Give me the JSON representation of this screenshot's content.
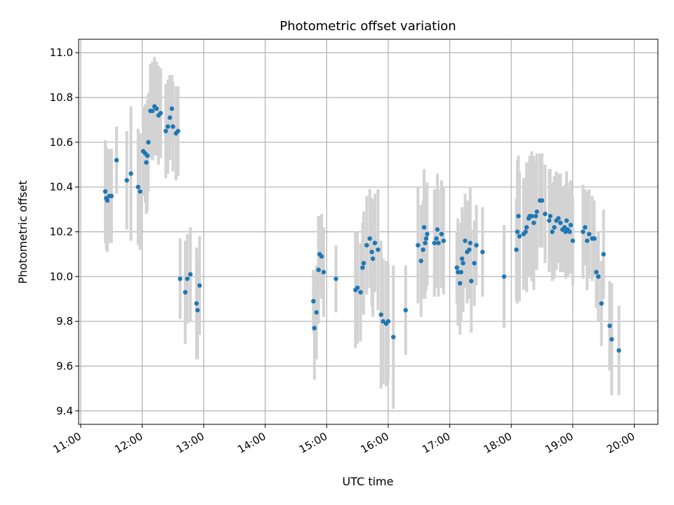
{
  "chart_data": {
    "type": "scatter",
    "title": "Photometric offset variation",
    "xlabel": "UTC time",
    "ylabel": "Photometric offset",
    "xlim": [
      "10:58",
      "20:23"
    ],
    "ylim": [
      9.34,
      11.06
    ],
    "x_ticks": [
      "11:00",
      "12:00",
      "13:00",
      "14:00",
      "15:00",
      "16:00",
      "17:00",
      "18:00",
      "19:00",
      "20:00"
    ],
    "y_ticks": [
      "9.4",
      "9.6",
      "9.8",
      "10.0",
      "10.2",
      "10.4",
      "10.6",
      "10.8",
      "11.0"
    ],
    "grid": true,
    "colors": {
      "point": "#1f77b4",
      "errorbar": "#d3d3d3",
      "grid": "#b0b0b0"
    },
    "series": [
      {
        "marker": "point-with-errorbar",
        "points": [
          {
            "t": "11:24",
            "y": 10.38,
            "err": 0.23
          },
          {
            "t": "11:25",
            "y": 10.35,
            "err": 0.23
          },
          {
            "t": "11:26",
            "y": 10.34,
            "err": 0.23
          },
          {
            "t": "11:28",
            "y": 10.36,
            "err": 0.21
          },
          {
            "t": "11:30",
            "y": 10.36,
            "err": 0.21
          },
          {
            "t": "11:35",
            "y": 10.52,
            "err": 0.15
          },
          {
            "t": "11:45",
            "y": 10.43,
            "err": 0.22
          },
          {
            "t": "11:49",
            "y": 10.46,
            "err": 0.3
          },
          {
            "t": "11:56",
            "y": 10.4,
            "err": 0.26
          },
          {
            "t": "11:58",
            "y": 10.38,
            "err": 0.26
          },
          {
            "t": "12:01",
            "y": 10.56,
            "err": 0.2
          },
          {
            "t": "12:03",
            "y": 10.55,
            "err": 0.22
          },
          {
            "t": "12:04",
            "y": 10.51,
            "err": 0.23
          },
          {
            "t": "12:05",
            "y": 10.54,
            "err": 0.25
          },
          {
            "t": "12:06",
            "y": 10.6,
            "err": 0.22
          },
          {
            "t": "12:08",
            "y": 10.74,
            "err": 0.21
          },
          {
            "t": "12:10",
            "y": 10.74,
            "err": 0.22
          },
          {
            "t": "12:12",
            "y": 10.76,
            "err": 0.22
          },
          {
            "t": "12:14",
            "y": 10.75,
            "err": 0.21
          },
          {
            "t": "12:16",
            "y": 10.72,
            "err": 0.22
          },
          {
            "t": "12:18",
            "y": 10.73,
            "err": 0.2
          },
          {
            "t": "12:23",
            "y": 10.65,
            "err": 0.21
          },
          {
            "t": "12:25",
            "y": 10.67,
            "err": 0.21
          },
          {
            "t": "12:27",
            "y": 10.71,
            "err": 0.19
          },
          {
            "t": "12:29",
            "y": 10.75,
            "err": 0.15
          },
          {
            "t": "12:30",
            "y": 10.67,
            "err": 0.2
          },
          {
            "t": "12:33",
            "y": 10.64,
            "err": 0.21
          },
          {
            "t": "12:35",
            "y": 10.65,
            "err": 0.2
          },
          {
            "t": "12:37",
            "y": 9.99,
            "err": 0.18
          },
          {
            "t": "12:42",
            "y": 9.93,
            "err": 0.23
          },
          {
            "t": "12:44",
            "y": 9.99,
            "err": 0.2
          },
          {
            "t": "12:47",
            "y": 10.01,
            "err": 0.21
          },
          {
            "t": "12:53",
            "y": 9.88,
            "err": 0.25
          },
          {
            "t": "12:54",
            "y": 9.85,
            "err": 0.22
          },
          {
            "t": "12:56",
            "y": 9.96,
            "err": 0.22
          },
          {
            "t": "14:47",
            "y": 9.89,
            "err": 0.14
          },
          {
            "t": "14:48",
            "y": 9.77,
            "err": 0.23
          },
          {
            "t": "14:50",
            "y": 9.84,
            "err": 0.21
          },
          {
            "t": "14:52",
            "y": 10.03,
            "err": 0.24
          },
          {
            "t": "14:53",
            "y": 10.1,
            "err": 0.17
          },
          {
            "t": "14:55",
            "y": 10.09,
            "err": 0.19
          },
          {
            "t": "14:57",
            "y": 10.02,
            "err": 0.2
          },
          {
            "t": "15:09",
            "y": 9.99,
            "err": 0.15
          },
          {
            "t": "15:28",
            "y": 9.94,
            "err": 0.26
          },
          {
            "t": "15:30",
            "y": 9.95,
            "err": 0.25
          },
          {
            "t": "15:33",
            "y": 9.93,
            "err": 0.22
          },
          {
            "t": "15:35",
            "y": 10.04,
            "err": 0.2
          },
          {
            "t": "15:36",
            "y": 10.06,
            "err": 0.23
          },
          {
            "t": "15:39",
            "y": 10.14,
            "err": 0.22
          },
          {
            "t": "15:42",
            "y": 10.17,
            "err": 0.22
          },
          {
            "t": "15:44",
            "y": 10.11,
            "err": 0.24
          },
          {
            "t": "15:45",
            "y": 10.08,
            "err": 0.26
          },
          {
            "t": "15:47",
            "y": 10.15,
            "err": 0.22
          },
          {
            "t": "15:50",
            "y": 10.12,
            "err": 0.27
          },
          {
            "t": "15:53",
            "y": 9.83,
            "err": 0.33
          },
          {
            "t": "15:55",
            "y": 9.8,
            "err": 0.28
          },
          {
            "t": "15:58",
            "y": 9.79,
            "err": 0.28
          },
          {
            "t": "16:00",
            "y": 9.8,
            "err": 0.26
          },
          {
            "t": "16:05",
            "y": 9.73,
            "err": 0.32
          },
          {
            "t": "16:17",
            "y": 9.85,
            "err": 0.2
          },
          {
            "t": "16:29",
            "y": 10.14,
            "err": 0.26
          },
          {
            "t": "16:32",
            "y": 10.07,
            "err": 0.25
          },
          {
            "t": "16:34",
            "y": 10.12,
            "err": 0.22
          },
          {
            "t": "16:35",
            "y": 10.22,
            "err": 0.26
          },
          {
            "t": "16:36",
            "y": 10.15,
            "err": 0.25
          },
          {
            "t": "16:37",
            "y": 10.17,
            "err": 0.23
          },
          {
            "t": "16:38",
            "y": 10.19,
            "err": 0.23
          },
          {
            "t": "16:45",
            "y": 10.15,
            "err": 0.24
          },
          {
            "t": "16:47",
            "y": 10.17,
            "err": 0.22
          },
          {
            "t": "16:48",
            "y": 10.21,
            "err": 0.25
          },
          {
            "t": "16:49",
            "y": 10.15,
            "err": 0.24
          },
          {
            "t": "16:52",
            "y": 10.19,
            "err": 0.24
          },
          {
            "t": "16:54",
            "y": 10.16,
            "err": 0.24
          },
          {
            "t": "17:07",
            "y": 10.04,
            "err": 0.16
          },
          {
            "t": "17:08",
            "y": 10.02,
            "err": 0.24
          },
          {
            "t": "17:10",
            "y": 9.97,
            "err": 0.23
          },
          {
            "t": "17:11",
            "y": 10.02,
            "err": 0.22
          },
          {
            "t": "17:12",
            "y": 10.08,
            "err": 0.23
          },
          {
            "t": "17:13",
            "y": 10.06,
            "err": 0.22
          },
          {
            "t": "17:15",
            "y": 10.16,
            "err": 0.21
          },
          {
            "t": "17:17",
            "y": 10.11,
            "err": 0.23
          },
          {
            "t": "17:19",
            "y": 10.12,
            "err": 0.22
          },
          {
            "t": "17:20",
            "y": 10.15,
            "err": 0.25
          },
          {
            "t": "17:21",
            "y": 9.98,
            "err": 0.23
          },
          {
            "t": "17:24",
            "y": 10.06,
            "err": 0.19
          },
          {
            "t": "17:26",
            "y": 10.14,
            "err": 0.18
          },
          {
            "t": "17:32",
            "y": 10.11,
            "err": 0.2
          },
          {
            "t": "17:53",
            "y": 10.0,
            "err": 0.23
          },
          {
            "t": "18:05",
            "y": 10.12,
            "err": 0.23
          },
          {
            "t": "18:06",
            "y": 10.2,
            "err": 0.32
          },
          {
            "t": "18:07",
            "y": 10.27,
            "err": 0.27
          },
          {
            "t": "18:08",
            "y": 10.18,
            "err": 0.29
          },
          {
            "t": "18:12",
            "y": 10.19,
            "err": 0.25
          },
          {
            "t": "18:14",
            "y": 10.2,
            "err": 0.24
          },
          {
            "t": "18:15",
            "y": 10.22,
            "err": 0.29
          },
          {
            "t": "18:17",
            "y": 10.26,
            "err": 0.25
          },
          {
            "t": "18:18",
            "y": 10.27,
            "err": 0.27
          },
          {
            "t": "18:20",
            "y": 10.27,
            "err": 0.29
          },
          {
            "t": "18:22",
            "y": 10.24,
            "err": 0.3
          },
          {
            "t": "18:24",
            "y": 10.27,
            "err": 0.24
          },
          {
            "t": "18:25",
            "y": 10.29,
            "err": 0.26
          },
          {
            "t": "18:28",
            "y": 10.34,
            "err": 0.21
          },
          {
            "t": "18:30",
            "y": 10.34,
            "err": 0.21
          },
          {
            "t": "18:33",
            "y": 10.28,
            "err": 0.22
          },
          {
            "t": "18:37",
            "y": 10.25,
            "err": 0.23
          },
          {
            "t": "18:38",
            "y": 10.27,
            "err": 0.21
          },
          {
            "t": "18:40",
            "y": 10.2,
            "err": 0.22
          },
          {
            "t": "18:42",
            "y": 10.22,
            "err": 0.23
          },
          {
            "t": "18:44",
            "y": 10.25,
            "err": 0.22
          },
          {
            "t": "18:46",
            "y": 10.26,
            "err": 0.2
          },
          {
            "t": "18:48",
            "y": 10.24,
            "err": 0.22
          },
          {
            "t": "18:50",
            "y": 10.21,
            "err": 0.19
          },
          {
            "t": "18:52",
            "y": 10.22,
            "err": 0.19
          },
          {
            "t": "18:53",
            "y": 10.2,
            "err": 0.21
          },
          {
            "t": "18:54",
            "y": 10.25,
            "err": 0.22
          },
          {
            "t": "18:55",
            "y": 10.21,
            "err": 0.21
          },
          {
            "t": "18:57",
            "y": 10.2,
            "err": 0.19
          },
          {
            "t": "18:58",
            "y": 10.23,
            "err": 0.2
          },
          {
            "t": "19:00",
            "y": 10.16,
            "err": 0.2
          },
          {
            "t": "19:10",
            "y": 10.2,
            "err": 0.21
          },
          {
            "t": "19:12",
            "y": 10.22,
            "err": 0.17
          },
          {
            "t": "19:14",
            "y": 10.16,
            "err": 0.22
          },
          {
            "t": "19:16",
            "y": 10.19,
            "err": 0.2
          },
          {
            "t": "19:19",
            "y": 10.17,
            "err": 0.19
          },
          {
            "t": "19:21",
            "y": 10.17,
            "err": 0.17
          },
          {
            "t": "19:23",
            "y": 10.02,
            "err": 0.16
          },
          {
            "t": "19:25",
            "y": 10.0,
            "err": 0.2
          },
          {
            "t": "19:28",
            "y": 9.88,
            "err": 0.19
          },
          {
            "t": "19:30",
            "y": 10.1,
            "err": 0.2
          },
          {
            "t": "19:36",
            "y": 9.78,
            "err": 0.2
          },
          {
            "t": "19:38",
            "y": 9.72,
            "err": 0.25
          },
          {
            "t": "19:45",
            "y": 9.67,
            "err": 0.2
          }
        ]
      }
    ]
  }
}
